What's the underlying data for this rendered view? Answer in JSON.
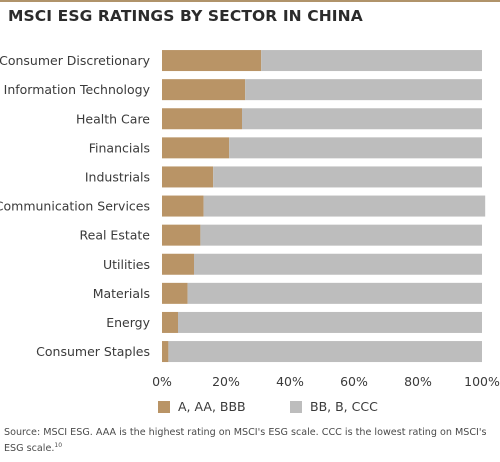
{
  "title": "MSCI ESG RATINGS BY SECTOR IN CHINA",
  "source_note": "Source: MSCI ESG. AAA is the highest rating on MSCI's ESG scale. CCC is the lowest rating on MSCI's ESG scale.",
  "source_footnote_ref": "10",
  "colors": {
    "high": "#b99466",
    "low": "#bdbdbd",
    "rule": "#b0936a"
  },
  "chart_data": {
    "type": "bar",
    "orientation": "horizontal",
    "stacked": true,
    "categories": [
      "Consumer Discretionary",
      "Information Technology",
      "Health Care",
      "Financials",
      "Industrials",
      "Communication Services",
      "Real Estate",
      "Utilities",
      "Materials",
      "Energy",
      "Consumer Staples"
    ],
    "series": [
      {
        "name": "A, AA, BBB",
        "color": "#b99466",
        "values": [
          31,
          26,
          25,
          21,
          16,
          13,
          12,
          10,
          8,
          5,
          2
        ]
      },
      {
        "name": "BB, B, CCC",
        "color": "#bdbdbd",
        "values": [
          69,
          74,
          75,
          79,
          84,
          88,
          88,
          90,
          92,
          95,
          98
        ]
      }
    ],
    "xlim": [
      0,
      100
    ],
    "xticks": [
      "0%",
      "20%",
      "40%",
      "60%",
      "80%",
      "100%"
    ],
    "xlabel": "",
    "ylabel": "",
    "legend_position": "bottom",
    "grid": false
  }
}
